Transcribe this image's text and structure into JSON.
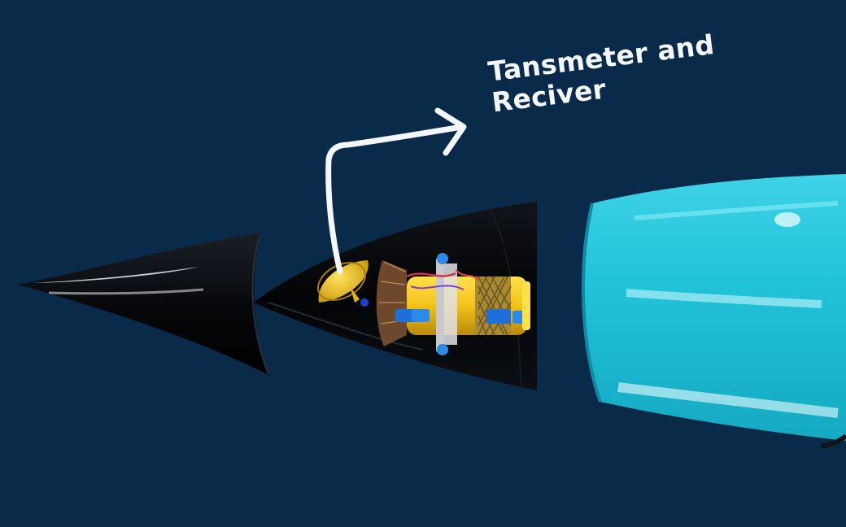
{
  "annotation": {
    "line1": "Tansmeter and",
    "line2": "Reciver"
  },
  "colors": {
    "background": "#0a2a4a",
    "cone_body": "#050608",
    "fairing": "#21c0d6",
    "dish": "#f2c21a",
    "arrow": "#f4f7f9"
  },
  "icons": {
    "arrow": "hand-drawn-arrow-icon",
    "dish": "satellite-dish-icon"
  }
}
